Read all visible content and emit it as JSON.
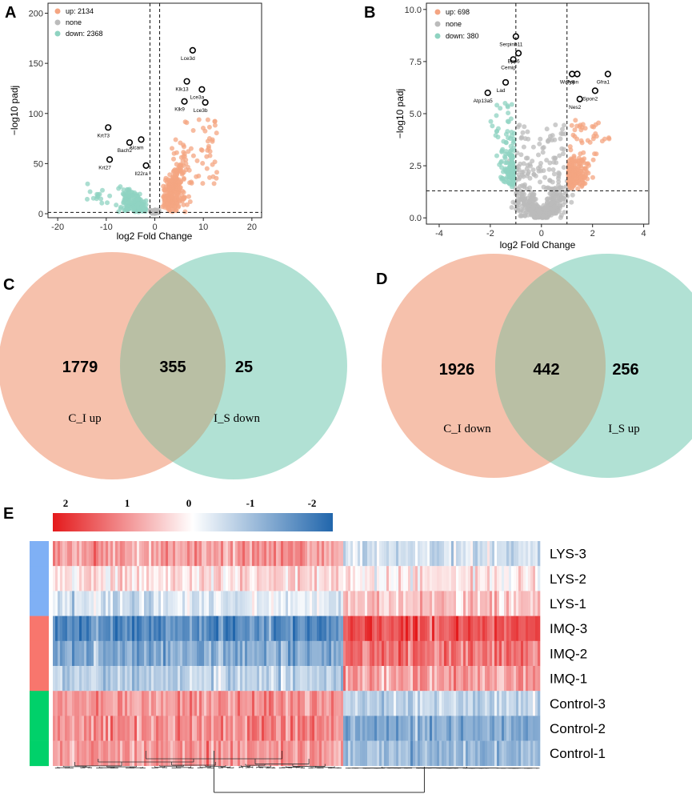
{
  "figure": {
    "panel_letters": [
      "A",
      "B",
      "C",
      "D",
      "E"
    ]
  },
  "colors": {
    "up": "#F4A582",
    "down": "#8FD3C1",
    "none": "#BBBBBB",
    "venn_left": "#F4B69E",
    "venn_right": "#9ED9C9",
    "venn_overlap": "#B9BFA4",
    "hm_red": "#E41A1C",
    "hm_blue": "#2166AC",
    "group_lys": "#7FB0F5",
    "group_imq": "#F8766D",
    "group_control": "#00D16A"
  },
  "chart_data": [
    {
      "type": "scatter",
      "panel": "A",
      "xlabel": "log2 Fold Change",
      "ylabel": "−log10 padj",
      "xlim": [
        -22,
        22
      ],
      "ylim": [
        -4,
        210
      ],
      "xticks": [
        "-20",
        "-10",
        "0",
        "10",
        "20"
      ],
      "xtick_values": [
        -20,
        -10,
        0,
        10,
        20
      ],
      "yticks": [
        "0",
        "50",
        "100",
        "150",
        "200"
      ],
      "ytick_values": [
        0,
        50,
        100,
        150,
        200
      ],
      "vlines": [
        -1,
        1
      ],
      "hline": 1.3,
      "legend": [
        {
          "label": "up: 2134",
          "class": "up"
        },
        {
          "label": "none",
          "class": "none"
        },
        {
          "label": "down: 2368",
          "class": "down"
        }
      ],
      "labeled_genes": [
        {
          "name": "Lce3d",
          "x": 7.8,
          "y": 163
        },
        {
          "name": "Klk13",
          "x": 6.6,
          "y": 132
        },
        {
          "name": "Lce3a",
          "x": 9.7,
          "y": 124
        },
        {
          "name": "Klk9",
          "x": 6.1,
          "y": 112
        },
        {
          "name": "Lce3b",
          "x": 10.4,
          "y": 111
        },
        {
          "name": "Krt73",
          "x": -9.6,
          "y": 86
        },
        {
          "name": "Alcam",
          "x": -2.8,
          "y": 74
        },
        {
          "name": "Bach2",
          "x": -5.2,
          "y": 71
        },
        {
          "name": "Il22ra",
          "x": -1.8,
          "y": 48
        },
        {
          "name": "Krt27",
          "x": -9.3,
          "y": 54
        }
      ]
    },
    {
      "type": "scatter",
      "panel": "B",
      "xlabel": "log2 Fold Change",
      "ylabel": "−log10 padj",
      "xlim": [
        -4.5,
        4.2
      ],
      "ylim": [
        -0.3,
        10.3
      ],
      "xticks": [
        "-4",
        "-2",
        "0",
        "2",
        "4"
      ],
      "xtick_values": [
        -4,
        -2,
        0,
        2,
        4
      ],
      "yticks": [
        "0.0",
        "2.5",
        "5.0",
        "7.5",
        "10.0"
      ],
      "ytick_values": [
        0,
        2.5,
        5,
        7.5,
        10
      ],
      "vlines": [
        -1,
        1
      ],
      "hline": 1.3,
      "legend": [
        {
          "label": "up: 698",
          "class": "up"
        },
        {
          "label": "none",
          "class": "none"
        },
        {
          "label": "down: 380",
          "class": "down"
        }
      ],
      "labeled_genes": [
        {
          "name": "Serpinb11",
          "x": -1.0,
          "y": 8.7
        },
        {
          "name": "Bpp6",
          "x": -0.9,
          "y": 7.9
        },
        {
          "name": "Cemip",
          "x": -1.1,
          "y": 7.6
        },
        {
          "name": "Lad",
          "x": -1.4,
          "y": 6.5
        },
        {
          "name": "Atp13a5",
          "x": -2.1,
          "y": 6.0
        },
        {
          "name": "Wdfy4",
          "x": 1.2,
          "y": 6.9
        },
        {
          "name": "Pdpn",
          "x": 1.4,
          "y": 6.9
        },
        {
          "name": "Gfra1",
          "x": 2.6,
          "y": 6.9
        },
        {
          "name": "Spon2",
          "x": 2.1,
          "y": 6.1
        },
        {
          "name": "Nes2",
          "x": 1.5,
          "y": 5.7
        }
      ]
    },
    {
      "type": "venn",
      "panel": "C",
      "left_only": "1779",
      "overlap": "355",
      "right_only": "25",
      "left_label": "C_I up",
      "right_label": "I_S down"
    },
    {
      "type": "venn",
      "panel": "D",
      "left_only": "1926",
      "overlap": "442",
      "right_only": "256",
      "left_label": "C_I down",
      "right_label": "I_S up"
    },
    {
      "type": "heatmap",
      "panel": "E",
      "scale_ticks": [
        "2",
        "1",
        "0",
        "-1",
        "-2"
      ],
      "scale_values": [
        2,
        1,
        0,
        -1,
        -2
      ],
      "rows": [
        "LYS-3",
        "LYS-2",
        "LYS-1",
        "IMQ-3",
        "IMQ-2",
        "IMQ-1",
        "Control-3",
        "Control-2",
        "Control-1"
      ],
      "row_groups": [
        "group_lys",
        "group_lys",
        "group_lys",
        "group_imq",
        "group_imq",
        "group_imq",
        "group_control",
        "group_control",
        "group_control"
      ],
      "cluster_split_fraction": 0.595,
      "block_means": [
        [
          0.9,
          -0.4
        ],
        [
          0.3,
          0.2
        ],
        [
          -0.3,
          0.5
        ],
        [
          -1.5,
          1.5
        ],
        [
          -1.1,
          1.2
        ],
        [
          -0.6,
          0.9
        ],
        [
          0.9,
          -0.5
        ],
        [
          1.0,
          -1.1
        ],
        [
          0.9,
          -0.9
        ]
      ]
    }
  ]
}
